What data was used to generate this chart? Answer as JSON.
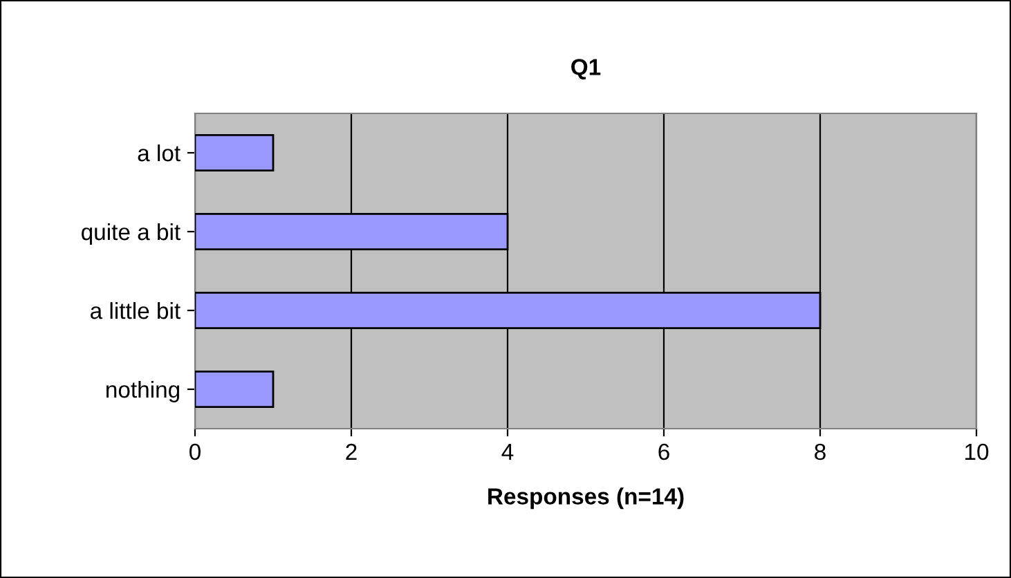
{
  "chart_data": {
    "type": "bar",
    "orientation": "horizontal",
    "title": "Q1",
    "xlabel": "Responses (n=14)",
    "categories": [
      "a lot",
      "quite a bit",
      "a little bit",
      "nothing"
    ],
    "series": [
      {
        "color": "#9999ff",
        "values": [
          1,
          4,
          8,
          1
        ]
      }
    ],
    "xlim": [
      0,
      10
    ],
    "xticks": [
      0,
      2,
      4,
      6,
      8,
      10
    ],
    "grid": "x"
  }
}
